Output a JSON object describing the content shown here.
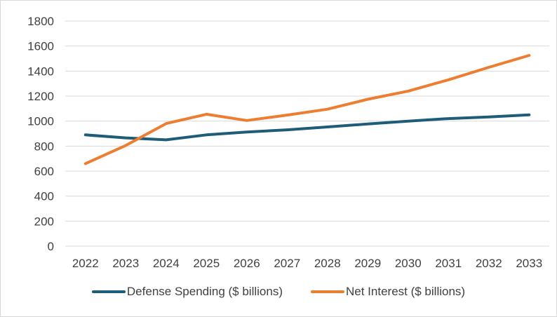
{
  "chart_data": {
    "type": "line",
    "categories": [
      "2022",
      "2023",
      "2024",
      "2025",
      "2026",
      "2027",
      "2028",
      "2029",
      "2030",
      "2031",
      "2032",
      "2033"
    ],
    "series": [
      {
        "name": "Defense Spending ($ billions)",
        "color": "#1f5c7a",
        "values": [
          890,
          866,
          850,
          890,
          913,
          930,
          953,
          977,
          1000,
          1020,
          1033,
          1050
        ]
      },
      {
        "name": "Net Interest ($ billions)",
        "color": "#ed7d31",
        "values": [
          660,
          805,
          980,
          1055,
          1005,
          1048,
          1095,
          1175,
          1240,
          1330,
          1430,
          1525
        ]
      }
    ],
    "ylim": [
      0,
      1800
    ],
    "yticks": [
      "0",
      "200",
      "400",
      "600",
      "800",
      "1000",
      "1200",
      "1400",
      "1600",
      "1800"
    ],
    "grid": true,
    "legend_position": "bottom"
  }
}
